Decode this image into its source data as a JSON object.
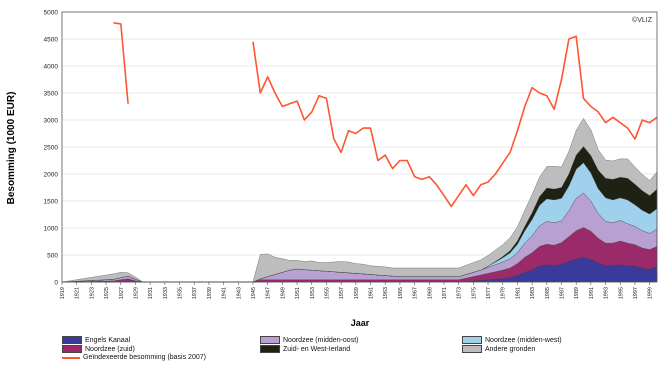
{
  "chart_data": {
    "type": "area",
    "stacked": true,
    "title": "",
    "watermark": "©VLIZ",
    "xlabel": "Jaar",
    "ylabel": "Besomming (1000 EUR)",
    "ylim": [
      0,
      5000
    ],
    "yticks": [
      "0",
      "500",
      "1000",
      "1500",
      "2000",
      "2500",
      "3000",
      "3500",
      "4000",
      "4500",
      "5000"
    ],
    "xlim": [
      1919,
      2000
    ],
    "xtick_labels": [
      "1919",
      "1921",
      "1923",
      "1925",
      "1927",
      "1929",
      "1931",
      "1933",
      "1935",
      "1937",
      "1939",
      "1941",
      "1943",
      "1945",
      "1947",
      "1949",
      "1951",
      "1953",
      "1955",
      "1957",
      "1959",
      "1961",
      "1963",
      "1965",
      "1967",
      "1969",
      "1971",
      "1973",
      "1975",
      "1977",
      "1979",
      "1981",
      "1983",
      "1985",
      "1987",
      "1989",
      "1991",
      "1993",
      "1995",
      "1997",
      "1999"
    ],
    "grid": true,
    "legend_position": "bottom",
    "x": [
      1919,
      1926,
      1927,
      1928,
      1929,
      1930,
      1940,
      1945,
      1946,
      1947,
      1948,
      1949,
      1950,
      1951,
      1952,
      1953,
      1954,
      1955,
      1956,
      1957,
      1958,
      1959,
      1960,
      1961,
      1962,
      1963,
      1964,
      1965,
      1966,
      1967,
      1968,
      1969,
      1970,
      1971,
      1972,
      1973,
      1974,
      1975,
      1976,
      1977,
      1978,
      1979,
      1980,
      1981,
      1982,
      1983,
      1984,
      1985,
      1986,
      1987,
      1988,
      1989,
      1990,
      1991,
      1992,
      1993,
      1994,
      1995,
      1996,
      1997,
      1998,
      1999,
      2000
    ],
    "series": [
      {
        "name": "Engels Kanaal",
        "color": "#3a3a9a",
        "values": [
          0,
          0,
          0,
          0,
          0,
          0,
          0,
          0,
          0,
          0,
          0,
          0,
          0,
          0,
          0,
          0,
          0,
          0,
          0,
          0,
          0,
          0,
          0,
          0,
          0,
          0,
          0,
          0,
          0,
          0,
          0,
          0,
          0,
          0,
          0,
          0,
          10,
          20,
          30,
          40,
          50,
          60,
          80,
          120,
          180,
          220,
          300,
          320,
          300,
          330,
          380,
          430,
          450,
          420,
          350,
          300,
          300,
          320,
          300,
          290,
          250,
          240,
          280
        ]
      },
      {
        "name": "Noordzee (zuid)",
        "color": "#9a2a6a",
        "values": [
          0,
          20,
          40,
          60,
          20,
          0,
          0,
          0,
          40,
          40,
          40,
          40,
          40,
          40,
          40,
          40,
          40,
          40,
          40,
          40,
          40,
          40,
          40,
          40,
          40,
          40,
          40,
          40,
          40,
          40,
          40,
          40,
          40,
          40,
          40,
          40,
          60,
          80,
          100,
          120,
          140,
          160,
          180,
          220,
          280,
          320,
          360,
          380,
          380,
          400,
          460,
          520,
          560,
          520,
          460,
          420,
          420,
          440,
          420,
          400,
          380,
          360,
          380
        ]
      },
      {
        "name": "Noordzee (midden-oost)",
        "color": "#b8a0d0",
        "values": [
          0,
          30,
          40,
          50,
          30,
          0,
          0,
          0,
          20,
          60,
          100,
          140,
          180,
          200,
          190,
          180,
          170,
          160,
          150,
          140,
          130,
          120,
          110,
          100,
          90,
          80,
          70,
          60,
          60,
          60,
          60,
          60,
          60,
          60,
          60,
          60,
          70,
          80,
          90,
          110,
          130,
          150,
          170,
          200,
          260,
          320,
          380,
          420,
          420,
          400,
          480,
          600,
          640,
          560,
          460,
          400,
          380,
          380,
          360,
          340,
          320,
          300,
          320
        ]
      },
      {
        "name": "Noordzee (midden-west)",
        "color": "#9fd0ec",
        "values": [
          0,
          0,
          0,
          0,
          0,
          0,
          0,
          0,
          0,
          0,
          0,
          0,
          0,
          0,
          0,
          0,
          0,
          0,
          0,
          0,
          0,
          0,
          0,
          0,
          0,
          0,
          0,
          0,
          0,
          0,
          0,
          0,
          0,
          0,
          0,
          0,
          0,
          0,
          0,
          20,
          50,
          80,
          110,
          160,
          230,
          300,
          380,
          420,
          420,
          420,
          460,
          540,
          560,
          520,
          460,
          440,
          420,
          420,
          440,
          400,
          380,
          360,
          380
        ]
      },
      {
        "name": "Zuid- en West-Ierland",
        "color": "#1e2214",
        "values": [
          0,
          0,
          0,
          0,
          0,
          0,
          0,
          0,
          0,
          0,
          0,
          0,
          0,
          0,
          0,
          0,
          0,
          0,
          0,
          0,
          0,
          0,
          0,
          0,
          0,
          0,
          0,
          0,
          0,
          0,
          0,
          0,
          0,
          0,
          0,
          0,
          0,
          0,
          0,
          0,
          10,
          20,
          40,
          60,
          80,
          120,
          160,
          200,
          200,
          200,
          220,
          260,
          300,
          320,
          340,
          360,
          380,
          380,
          400,
          380,
          360,
          340,
          360
        ]
      },
      {
        "name": "Andere gronden",
        "color": "#bdbdbd",
        "values": [
          0,
          100,
          100,
          60,
          40,
          0,
          0,
          0,
          450,
          420,
          320,
          250,
          180,
          160,
          150,
          170,
          150,
          160,
          180,
          200,
          200,
          180,
          180,
          160,
          160,
          160,
          150,
          160,
          160,
          160,
          160,
          160,
          160,
          160,
          160,
          160,
          170,
          180,
          190,
          200,
          210,
          220,
          240,
          260,
          300,
          340,
          360,
          400,
          420,
          380,
          420,
          460,
          520,
          480,
          380,
          340,
          340,
          340,
          360,
          320,
          300,
          280,
          320
        ]
      }
    ],
    "line_series": {
      "name": "Geïndexeerde besomming (basis 2007)",
      "color": "#ff5533",
      "segments": [
        {
          "x": [
            1926,
            1927,
            1928
          ],
          "values": [
            4800,
            4780,
            3300
          ]
        },
        {
          "x": [
            1945,
            1946,
            1947,
            1948,
            1949,
            1950,
            1951,
            1952,
            1953,
            1954,
            1955,
            1956,
            1957,
            1958,
            1959,
            1960,
            1961,
            1962,
            1963,
            1964,
            1965,
            1966,
            1967,
            1968,
            1969,
            1970,
            1971,
            1972,
            1973,
            1974,
            1975,
            1976,
            1977,
            1978,
            1979,
            1980,
            1981,
            1982,
            1983,
            1984,
            1985,
            1986,
            1987,
            1988,
            1989,
            1990,
            1991,
            1992,
            1993,
            1994,
            1995,
            1996,
            1997,
            1998,
            1999,
            2000
          ],
          "values": [
            4450,
            3500,
            3800,
            3500,
            3250,
            3300,
            3350,
            3000,
            3150,
            3450,
            3400,
            2650,
            2400,
            2800,
            2750,
            2850,
            2850,
            2250,
            2350,
            2100,
            2250,
            2250,
            1950,
            1900,
            1950,
            1800,
            1600,
            1400,
            1600,
            1800,
            1600,
            1800,
            1850,
            2000,
            2200,
            2400,
            2800,
            3250,
            3600,
            3500,
            3450,
            3200,
            3750,
            4500,
            4550,
            3400,
            3250,
            3150,
            2950,
            3050,
            2950,
            2850,
            2650,
            3000,
            2950,
            3050
          ]
        }
      ]
    }
  }
}
